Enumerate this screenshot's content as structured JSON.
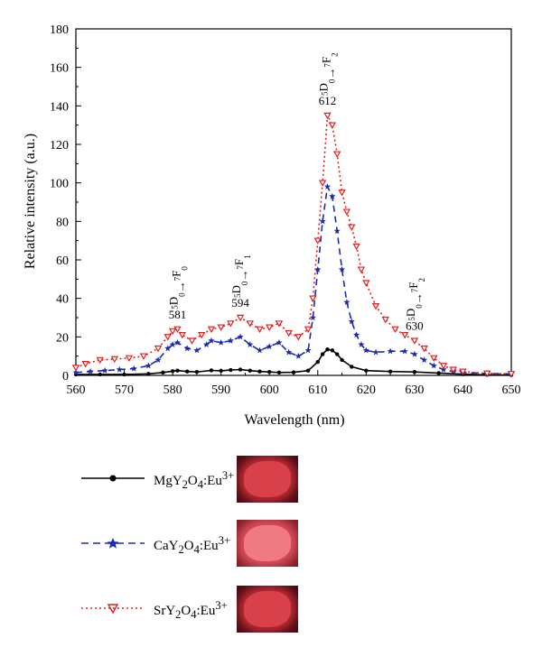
{
  "chart_data": {
    "type": "line",
    "xlabel": "Wavelength (nm)",
    "ylabel": "Relative intensity (a.u.)",
    "xlim": [
      560,
      650
    ],
    "ylim": [
      0,
      180
    ],
    "xticks": [
      "560",
      "570",
      "580",
      "590",
      "600",
      "610",
      "620",
      "630",
      "640",
      "650"
    ],
    "yticks": [
      "0",
      "20",
      "40",
      "60",
      "80",
      "100",
      "120",
      "140",
      "160",
      "180"
    ],
    "grid": false,
    "series": [
      {
        "name": "MgY2O4:Eu3+",
        "color": "#000000",
        "style": "solid",
        "marker": "circle",
        "x": [
          560,
          565,
          570,
          575,
          578,
          580,
          581,
          583,
          585,
          588,
          590,
          592,
          594,
          596,
          598,
          600,
          602,
          605,
          608,
          610,
          611,
          612,
          613,
          614,
          615,
          617,
          620,
          625,
          630,
          635,
          640,
          645,
          650
        ],
        "y": [
          0.5,
          0.5,
          0.5,
          0.8,
          1.5,
          2.2,
          2.5,
          2,
          1.8,
          2.6,
          2.4,
          2.8,
          3,
          2.5,
          2,
          1.8,
          1.5,
          1.6,
          2.5,
          7,
          11,
          13.5,
          13,
          11,
          8,
          4.5,
          2.5,
          2,
          1.8,
          1.2,
          0.6,
          0.3,
          0.2
        ]
      },
      {
        "name": "CaY2O4:Eu3+",
        "color": "#1a2bb0",
        "style": "dashed",
        "marker": "star",
        "x": [
          560,
          563,
          566,
          569,
          572,
          575,
          577,
          579,
          580,
          581,
          583,
          585,
          587,
          588,
          590,
          592,
          594,
          596,
          598,
          600,
          602,
          604,
          606,
          608,
          609,
          610,
          611,
          612,
          613,
          614,
          615,
          616,
          617,
          618,
          619,
          620,
          622,
          625,
          628,
          630,
          632,
          634,
          636,
          638,
          640,
          645,
          650
        ],
        "y": [
          1.5,
          2,
          2.5,
          3,
          3.5,
          5,
          8,
          14,
          16,
          17,
          14,
          13,
          16,
          18,
          17,
          18,
          20,
          16,
          13,
          15,
          17,
          12,
          10,
          13,
          30,
          55,
          80,
          98,
          93,
          75,
          55,
          38,
          28,
          21,
          16,
          13,
          12,
          12.5,
          12.5,
          11,
          8,
          5,
          3,
          2,
          1.5,
          1,
          0.8
        ]
      },
      {
        "name": "SrY2O4:Eu3+",
        "color": "#e02020",
        "style": "dotted",
        "marker": "triangle-down",
        "x": [
          560,
          562,
          565,
          568,
          571,
          574,
          577,
          579,
          580,
          581,
          582,
          584,
          586,
          588,
          590,
          592,
          594,
          596,
          598,
          600,
          602,
          604,
          606,
          608,
          609,
          610,
          611,
          612,
          613,
          614,
          615,
          616,
          617,
          618,
          619,
          620,
          622,
          624,
          626,
          628,
          630,
          632,
          634,
          636,
          638,
          640,
          645,
          650
        ],
        "y": [
          4,
          6,
          8,
          8.5,
          9,
          10,
          14,
          20,
          23,
          24,
          21,
          18,
          21,
          24,
          25,
          27,
          30,
          27,
          24,
          25,
          27,
          22,
          20,
          24,
          40,
          70,
          100,
          135,
          130,
          115,
          95,
          85,
          77,
          67,
          55,
          48,
          36,
          29,
          24,
          21,
          18,
          14,
          9,
          5,
          3,
          2,
          1,
          0.8
        ]
      }
    ],
    "annotations": [
      {
        "peak": "581",
        "transition": "5D0→7F0",
        "x": 581
      },
      {
        "peak": "594",
        "transition": "5D0→7F1",
        "x": 594
      },
      {
        "peak": "612",
        "transition": "5D0→7F2",
        "x": 612
      },
      {
        "peak": "630",
        "transition": "5D0→7F2",
        "x": 630
      }
    ]
  },
  "legend": {
    "items": [
      {
        "host": "MgY",
        "tail": "O",
        "dopant": ":Eu",
        "charge": "3+",
        "sub": "2",
        "sub2": "4"
      },
      {
        "host": "CaY",
        "tail": "O",
        "dopant": ":Eu",
        "charge": "3+",
        "sub": "2",
        "sub2": "4"
      },
      {
        "host": "SrY",
        "tail": "O",
        "dopant": ":Eu",
        "charge": "3+",
        "sub": "2",
        "sub2": "4"
      }
    ]
  }
}
